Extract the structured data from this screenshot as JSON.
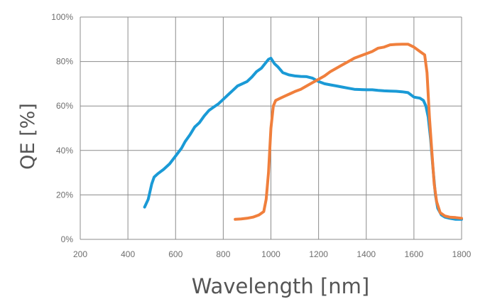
{
  "chart_data": {
    "type": "line",
    "title": "",
    "xlabel": "Wavelength [nm]",
    "ylabel": "QE [%]",
    "xlim": [
      200,
      1800
    ],
    "ylim": [
      0,
      100
    ],
    "x_ticks": [
      200,
      400,
      600,
      800,
      1000,
      1200,
      1400,
      1600,
      1800
    ],
    "y_ticks": [
      0,
      20,
      40,
      60,
      80,
      100
    ],
    "y_tick_suffix": "%",
    "grid": true,
    "legend": "none",
    "series": [
      {
        "color": "#1a9ad6",
        "points": [
          [
            470,
            14.5
          ],
          [
            485,
            18
          ],
          [
            500,
            25
          ],
          [
            510,
            28
          ],
          [
            525,
            29.5
          ],
          [
            550,
            31.5
          ],
          [
            575,
            34
          ],
          [
            600,
            37.5
          ],
          [
            625,
            41
          ],
          [
            640,
            44
          ],
          [
            660,
            47
          ],
          [
            680,
            50.5
          ],
          [
            700,
            52.5
          ],
          [
            720,
            55.5
          ],
          [
            740,
            58
          ],
          [
            760,
            59.5
          ],
          [
            780,
            61
          ],
          [
            800,
            63
          ],
          [
            820,
            65
          ],
          [
            840,
            67
          ],
          [
            860,
            69
          ],
          [
            880,
            70
          ],
          [
            900,
            71
          ],
          [
            920,
            73
          ],
          [
            940,
            75.5
          ],
          [
            960,
            77
          ],
          [
            975,
            79
          ],
          [
            990,
            81
          ],
          [
            1000,
            81.5
          ],
          [
            1015,
            79
          ],
          [
            1030,
            77.5
          ],
          [
            1050,
            75
          ],
          [
            1075,
            74
          ],
          [
            1100,
            73.5
          ],
          [
            1125,
            73.3
          ],
          [
            1150,
            73.2
          ],
          [
            1175,
            72.5
          ],
          [
            1200,
            71
          ],
          [
            1225,
            70
          ],
          [
            1250,
            69.5
          ],
          [
            1275,
            69
          ],
          [
            1300,
            68.5
          ],
          [
            1325,
            68
          ],
          [
            1350,
            67.5
          ],
          [
            1400,
            67.3
          ],
          [
            1425,
            67.3
          ],
          [
            1450,
            67
          ],
          [
            1475,
            66.8
          ],
          [
            1500,
            66.7
          ],
          [
            1525,
            66.6
          ],
          [
            1550,
            66.4
          ],
          [
            1575,
            66
          ],
          [
            1600,
            64
          ],
          [
            1625,
            63.5
          ],
          [
            1640,
            62.5
          ],
          [
            1650,
            60
          ],
          [
            1660,
            55
          ],
          [
            1670,
            45
          ],
          [
            1680,
            32
          ],
          [
            1690,
            20
          ],
          [
            1700,
            14
          ],
          [
            1715,
            11
          ],
          [
            1730,
            10
          ],
          [
            1750,
            9.5
          ],
          [
            1775,
            9
          ],
          [
            1800,
            9
          ]
        ]
      },
      {
        "color": "#f07f3c",
        "points": [
          [
            850,
            9
          ],
          [
            875,
            9.2
          ],
          [
            900,
            9.5
          ],
          [
            925,
            10
          ],
          [
            950,
            11
          ],
          [
            970,
            12.5
          ],
          [
            980,
            18
          ],
          [
            990,
            30
          ],
          [
            1000,
            50
          ],
          [
            1010,
            60
          ],
          [
            1020,
            62.5
          ],
          [
            1040,
            63.5
          ],
          [
            1060,
            64.5
          ],
          [
            1080,
            65.5
          ],
          [
            1100,
            66.5
          ],
          [
            1125,
            67.5
          ],
          [
            1150,
            69
          ],
          [
            1175,
            70.5
          ],
          [
            1200,
            72
          ],
          [
            1225,
            73.5
          ],
          [
            1250,
            75.5
          ],
          [
            1275,
            77
          ],
          [
            1300,
            78.5
          ],
          [
            1325,
            80
          ],
          [
            1350,
            81.5
          ],
          [
            1375,
            82.5
          ],
          [
            1400,
            83.5
          ],
          [
            1425,
            84.5
          ],
          [
            1450,
            86
          ],
          [
            1475,
            86.5
          ],
          [
            1500,
            87.5
          ],
          [
            1525,
            87.7
          ],
          [
            1550,
            87.8
          ],
          [
            1575,
            87.8
          ],
          [
            1600,
            86.5
          ],
          [
            1625,
            84.5
          ],
          [
            1645,
            83
          ],
          [
            1655,
            75
          ],
          [
            1665,
            55
          ],
          [
            1675,
            40
          ],
          [
            1685,
            25
          ],
          [
            1695,
            17
          ],
          [
            1710,
            12
          ],
          [
            1730,
            10.5
          ],
          [
            1750,
            10
          ],
          [
            1775,
            9.8
          ],
          [
            1800,
            9.5
          ]
        ]
      }
    ]
  }
}
